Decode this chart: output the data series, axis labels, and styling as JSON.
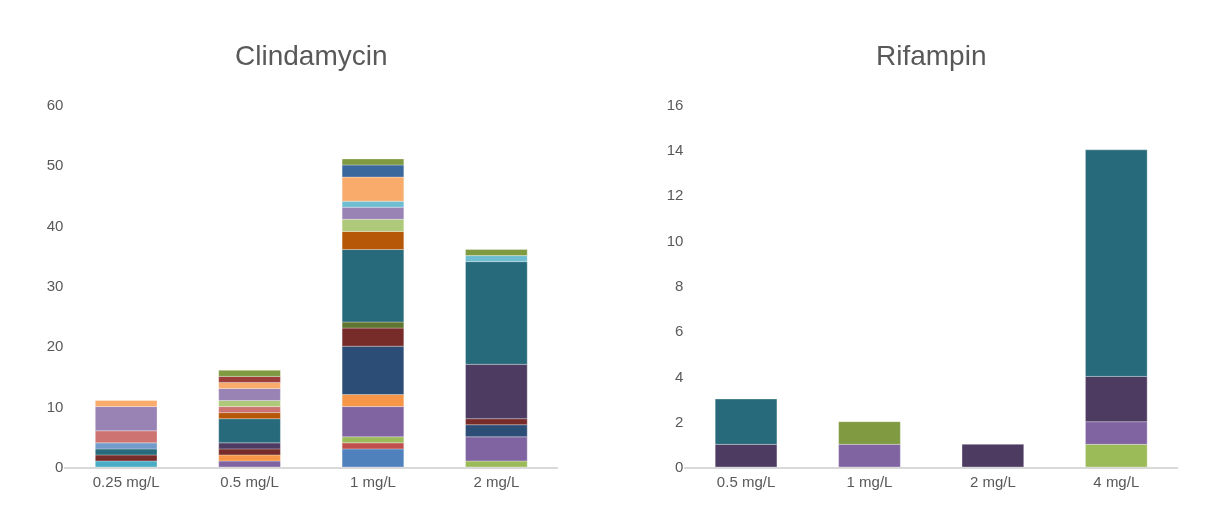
{
  "chart_data": [
    {
      "type": "bar",
      "title": "Clindamycin",
      "stacked": true,
      "categories": [
        "0.25 mg/L",
        "0.5 mg/L",
        "1 mg/L",
        "2 mg/L"
      ],
      "ylim": [
        0,
        60
      ],
      "yticks": [
        0,
        10,
        20,
        30,
        40,
        50,
        60
      ],
      "grid": false,
      "series": [
        {
          "color": "#4f81bd",
          "values": [
            null,
            null,
            3,
            null
          ]
        },
        {
          "color": "#c0504d",
          "values": [
            null,
            null,
            1,
            null
          ]
        },
        {
          "color": "#9bbb59",
          "values": [
            null,
            null,
            1,
            1
          ]
        },
        {
          "color": "#8064a2",
          "values": [
            null,
            1,
            5,
            4
          ]
        },
        {
          "color": "#4bacc6",
          "values": [
            1,
            null,
            null,
            null
          ]
        },
        {
          "color": "#f79646",
          "values": [
            null,
            1,
            2,
            null
          ]
        },
        {
          "color": "#2c4d75",
          "values": [
            null,
            null,
            8,
            2
          ]
        },
        {
          "color": "#772c2a",
          "values": [
            1,
            1,
            3,
            1
          ]
        },
        {
          "color": "#5f7530",
          "values": [
            null,
            null,
            1,
            null
          ]
        },
        {
          "color": "#4d3b62",
          "values": [
            null,
            1,
            null,
            9
          ]
        },
        {
          "color": "#276a7c",
          "values": [
            1,
            4,
            12,
            17
          ]
        },
        {
          "color": "#b65708",
          "values": [
            null,
            1,
            3,
            null
          ]
        },
        {
          "color": "#729aca",
          "values": [
            1,
            null,
            null,
            null
          ]
        },
        {
          "color": "#cd7371",
          "values": [
            2,
            1,
            null,
            null
          ]
        },
        {
          "color": "#afc97a",
          "values": [
            null,
            1,
            2,
            null
          ]
        },
        {
          "color": "#9983b5",
          "values": [
            4,
            2,
            2,
            null
          ]
        },
        {
          "color": "#6fbdd1",
          "values": [
            null,
            null,
            1,
            1
          ]
        },
        {
          "color": "#f9ab6b",
          "values": [
            1,
            1,
            4,
            null
          ]
        },
        {
          "color": "#3a679c",
          "values": [
            null,
            null,
            2,
            null
          ]
        },
        {
          "color": "#9d3d3a",
          "values": [
            null,
            1,
            null,
            null
          ]
        },
        {
          "color": "#7f9a41",
          "values": [
            null,
            1,
            1,
            1
          ]
        }
      ]
    },
    {
      "type": "bar",
      "title": "Rifampin",
      "stacked": true,
      "categories": [
        "0.5 mg/L",
        "1 mg/L",
        "2 mg/L",
        "4 mg/L"
      ],
      "ylim": [
        0,
        16
      ],
      "yticks": [
        0,
        2,
        4,
        6,
        8,
        10,
        12,
        14,
        16
      ],
      "grid": false,
      "series": [
        {
          "color": "#9bbb59",
          "values": [
            null,
            null,
            null,
            1
          ]
        },
        {
          "color": "#8064a2",
          "values": [
            null,
            1,
            null,
            1
          ]
        },
        {
          "color": "#4d3b62",
          "values": [
            1,
            null,
            1,
            2
          ]
        },
        {
          "color": "#276a7c",
          "values": [
            2,
            null,
            null,
            10
          ]
        },
        {
          "color": "#7f9a41",
          "values": [
            null,
            1,
            null,
            null
          ]
        }
      ]
    }
  ]
}
